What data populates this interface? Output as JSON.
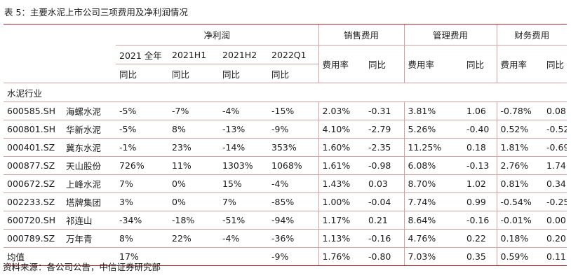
{
  "table_title": "表 5：主要水泥上市公司三项费用及净利润情况",
  "group_headers": {
    "net_profit": "净利润",
    "sales_expense": "销售费用",
    "admin_expense": "管理费用",
    "finance_expense": "财务费用"
  },
  "period_headers": [
    "2021 全年",
    "2021H1",
    "2021H2",
    "2022Q1"
  ],
  "yoy_label": "同比",
  "expense_subheaders": [
    "费用率",
    "同比",
    "费用率",
    "同比",
    "费用率",
    "同比"
  ],
  "sector_label": "水泥行业",
  "rows": [
    {
      "code": "600585.SH",
      "name": "海螺水泥",
      "values": [
        "-5%",
        "-7%",
        "-4%",
        "-15%",
        "2.03%",
        "-0.31",
        "3.81%",
        "1.06",
        "-0.78%",
        "0.08"
      ]
    },
    {
      "code": "600801.SH",
      "name": "华新水泥",
      "values": [
        "-5%",
        "8%",
        "-13%",
        "-9%",
        "4.10%",
        "-2.79",
        "5.26%",
        "-0.40",
        "0.52%",
        "-0.52"
      ]
    },
    {
      "code": "000401.SZ",
      "name": "冀东水泥",
      "values": [
        "-1%",
        "23%",
        "-14%",
        "353%",
        "1.60%",
        "-2.35",
        "11.25%",
        "0.18",
        "1.81%",
        "-0.69"
      ]
    },
    {
      "code": "000877.SZ",
      "name": "天山股份",
      "values": [
        "726%",
        "11%",
        "1303%",
        "1068%",
        "1.61%",
        "-0.98",
        "6.08%",
        "-0.13",
        "2.76%",
        "1.74"
      ]
    },
    {
      "code": "000672.SZ",
      "name": "上峰水泥",
      "values": [
        "7%",
        "0%",
        "15%",
        "-4%",
        "1.43%",
        "0.03",
        "8.70%",
        "1.02",
        "0.81%",
        "0.34"
      ]
    },
    {
      "code": "002233.SZ",
      "name": "塔牌集团",
      "values": [
        "3%",
        "0%",
        "7%",
        "-85%",
        "1.00%",
        "-0.04",
        "7.74%",
        "0.99",
        "-0.54%",
        "-0.25"
      ]
    },
    {
      "code": "600720.SH",
      "name": "祁连山",
      "values": [
        "-34%",
        "-18%",
        "-51%",
        "-94%",
        "1.17%",
        "0.21",
        "8.64%",
        "-0.16",
        "-0.01%",
        "0.00"
      ]
    },
    {
      "code": "000789.SZ",
      "name": "万年青",
      "values": [
        "8%",
        "22%",
        "-4%",
        "-36%",
        "1.13%",
        "-0.16",
        "4.76%",
        "0.22",
        "0.18%",
        "0.20"
      ]
    }
  ],
  "average_row": {
    "label": "均值",
    "values": [
      "17%",
      "",
      "",
      "-9%",
      "1.76%",
      "-0.80",
      "7.03%",
      "0.35",
      "0.59%",
      "0.11"
    ]
  },
  "source_note": "资料来源：各公司公告，中信证券研究部",
  "colors": {
    "rule": "#b22222",
    "thin_rule": "#d4a0a0",
    "text": "#1a1a1a"
  }
}
